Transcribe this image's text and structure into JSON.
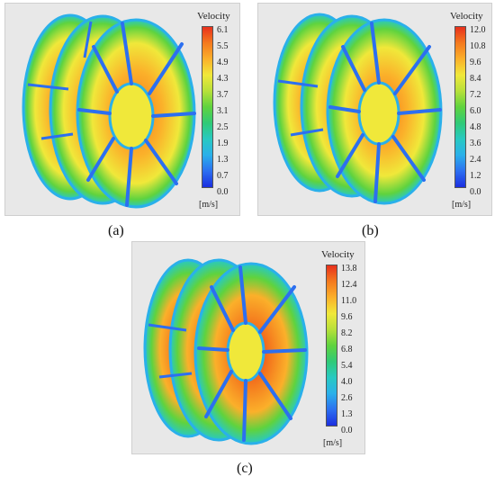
{
  "panels": [
    {
      "caption": "(a)",
      "legend_title": "Velocity",
      "unit": "[m/s]",
      "ticks": [
        "6.1",
        "5.5",
        "4.9",
        "4.3",
        "3.7",
        "3.1",
        "2.5",
        "1.9",
        "1.3",
        "0.7",
        "0.0"
      ]
    },
    {
      "caption": "(b)",
      "legend_title": "Velocity",
      "unit": "[m/s]",
      "ticks": [
        "12.0",
        "10.8",
        "9.6",
        "8.4",
        "7.2",
        "6.0",
        "4.8",
        "3.6",
        "2.4",
        "1.2",
        "0.0"
      ]
    },
    {
      "caption": "(c)",
      "legend_title": "Velocity",
      "unit": "[m/s]",
      "ticks": [
        "13.8",
        "12.4",
        "11.0",
        "9.6",
        "8.2",
        "6.8",
        "5.4",
        "4.0",
        "2.6",
        "1.3",
        "0.0"
      ]
    }
  ],
  "colors": {
    "max": "#e8301c",
    "high": "#fbb02a",
    "mid": "#5fd33e",
    "low": "#28c9c2",
    "min": "#1c2fe0",
    "background": "#e8e8e8"
  }
}
